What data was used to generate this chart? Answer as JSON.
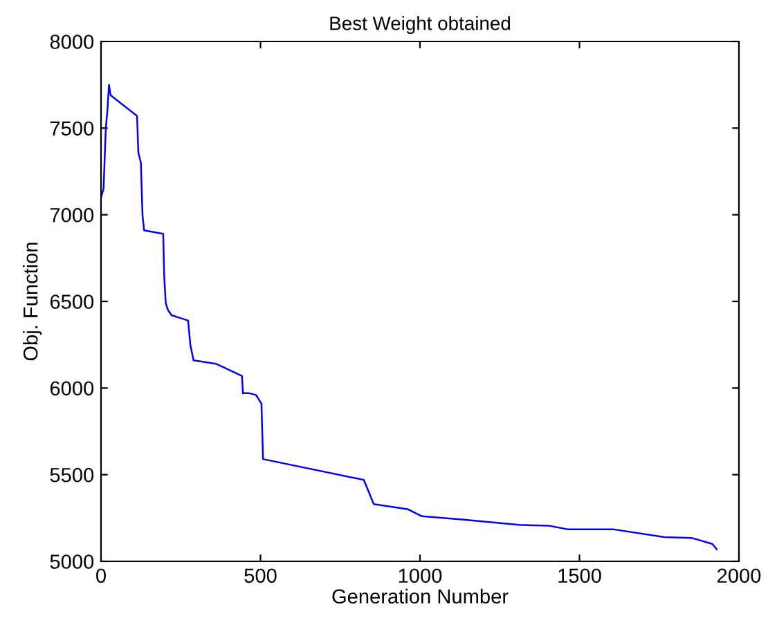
{
  "chart_data": {
    "type": "line",
    "title": "Best Weight obtained",
    "xlabel": "Generation Number",
    "ylabel": "Obj. Function",
    "x": [
      0,
      8,
      15,
      20,
      25,
      30,
      113,
      117,
      125,
      130,
      135,
      195,
      198,
      203,
      210,
      221,
      273,
      280,
      290,
      360,
      442,
      445,
      465,
      486,
      503,
      508,
      824,
      855,
      963,
      1006,
      1137,
      1310,
      1406,
      1462,
      1605,
      1766,
      1852,
      1917,
      1930
    ],
    "series": [
      {
        "color": "#0000ff",
        "values": [
          7100,
          7150,
          7500,
          7600,
          7750,
          7690,
          7570,
          7360,
          7300,
          7000,
          6910,
          6890,
          6650,
          6490,
          6450,
          6420,
          6390,
          6250,
          6160,
          6140,
          6070,
          5970,
          5970,
          5960,
          5910,
          5590,
          5470,
          5330,
          5300,
          5260,
          5240,
          5210,
          5205,
          5185,
          5185,
          5140,
          5135,
          5100,
          5070
        ]
      }
    ],
    "xlim": [
      0,
      2000
    ],
    "ylim": [
      5000,
      8000
    ],
    "xticks": [
      0,
      500,
      1000,
      1500,
      2000
    ],
    "yticks": [
      5000,
      5500,
      6000,
      6500,
      7000,
      7500,
      8000
    ],
    "grid": false,
    "legend": false
  }
}
